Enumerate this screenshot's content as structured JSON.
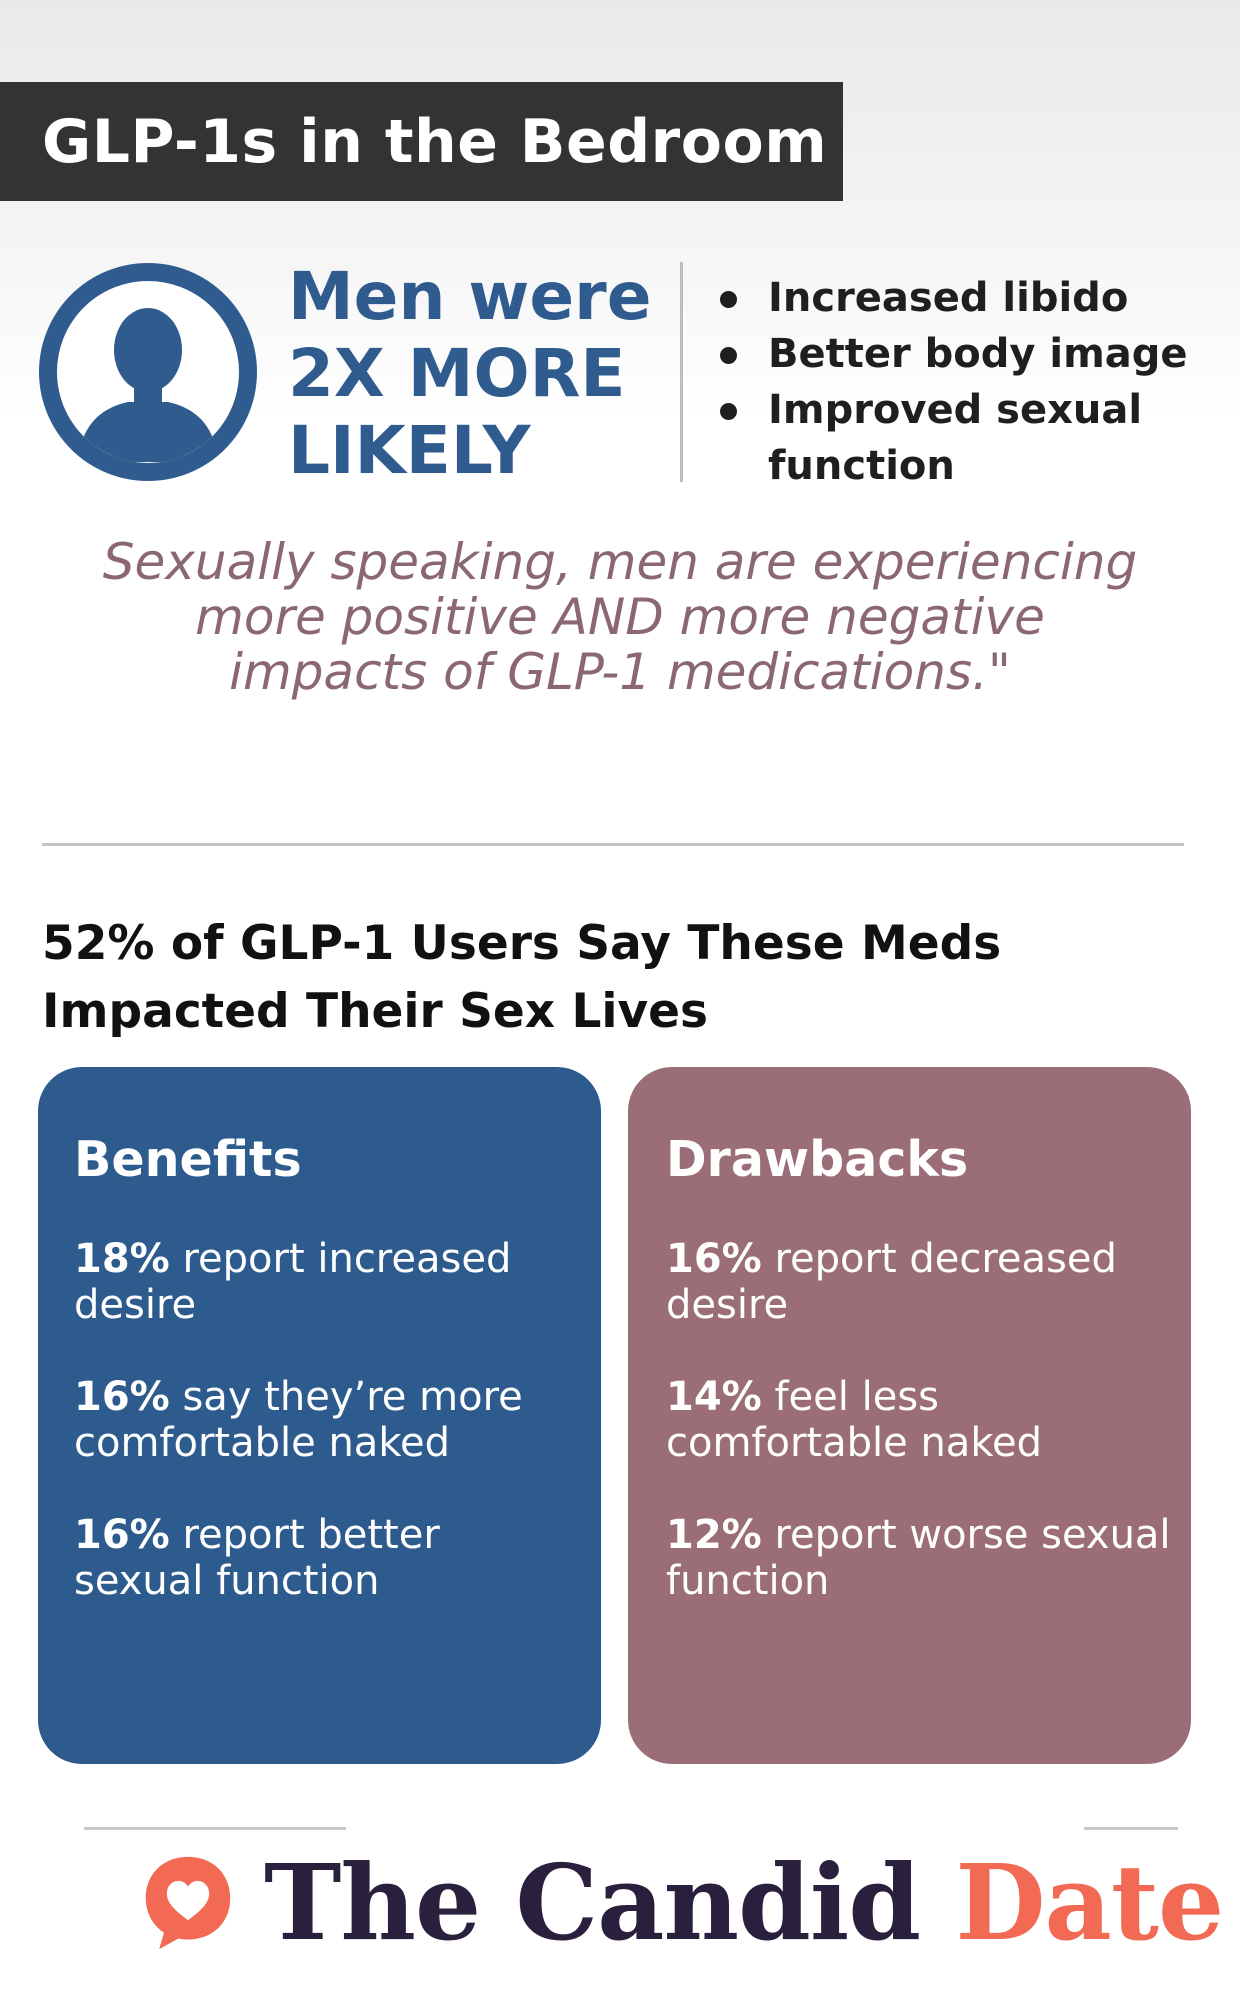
{
  "header": {
    "title": "GLP-1s in the Bedroom"
  },
  "stat": {
    "line1": "Men were",
    "line2": "2X MORE",
    "line3": "LIKELY",
    "bullets": [
      "Increased libido",
      "Better body image",
      "Improved sexual function"
    ]
  },
  "quote": {
    "line1": "Sexually speaking, men are experiencing",
    "line2": "more positive AND more negative",
    "line3": "impacts of GLP-1 medications.\""
  },
  "section": {
    "heading_line1": "52% of GLP-1 Users Say These Meds",
    "heading_line2": "Impacted Their Sex Lives"
  },
  "benefits": {
    "title": "Benefits",
    "items": [
      {
        "pct": "18%",
        "text": " report increased desire"
      },
      {
        "pct": "16%",
        "text": " say they’re more comfortable naked"
      },
      {
        "pct": "16%",
        "text": " report better sexual function"
      }
    ]
  },
  "drawbacks": {
    "title": "Drawbacks",
    "items": [
      {
        "pct": "16%",
        "text": " report decreased desire"
      },
      {
        "pct": "14%",
        "text": " feel less comfortable naked"
      },
      {
        "pct": "12%",
        "text": " report worse sexual function"
      }
    ]
  },
  "brand": {
    "name": "The Candid",
    "accent": "Date"
  },
  "colors": {
    "blue": "#2e5b8e",
    "mauve": "#9b6d76",
    "title_bar": "#333333",
    "quote": "#8b6870",
    "brand_dark": "#2b1f3e",
    "brand_accent": "#f26a54"
  },
  "icons": {
    "avatar": "person-silhouette-icon",
    "logo": "heart-speech-bubble-icon"
  }
}
